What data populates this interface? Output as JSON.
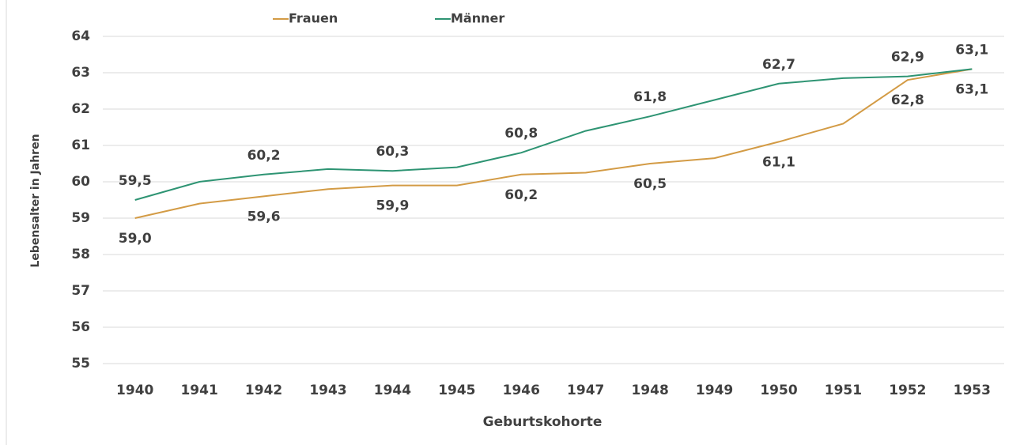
{
  "chart_data": {
    "type": "line",
    "x_label": "Geburtskohorte",
    "y_label": "Lebensalter in Jahren",
    "categories": [
      "1940",
      "1941",
      "1942",
      "1943",
      "1944",
      "1945",
      "1946",
      "1947",
      "1948",
      "1949",
      "1950",
      "1951",
      "1952",
      "1953"
    ],
    "series": [
      {
        "name": "Frauen",
        "color": "#d39b45",
        "label_side": "below",
        "values": [
          59.0,
          59.4,
          59.6,
          59.8,
          59.9,
          59.9,
          60.2,
          60.25,
          60.5,
          60.65,
          61.1,
          61.6,
          62.8,
          63.1
        ],
        "value_labels": [
          "59,0",
          null,
          "59,6",
          null,
          "59,9",
          null,
          "60,2",
          null,
          "60,5",
          null,
          "61,1",
          null,
          "62,8",
          "63,1"
        ]
      },
      {
        "name": "Männer",
        "color": "#2e9473",
        "label_side": "above",
        "values": [
          59.5,
          60.0,
          60.2,
          60.35,
          60.3,
          60.4,
          60.8,
          61.4,
          61.8,
          62.25,
          62.7,
          62.85,
          62.9,
          63.1
        ],
        "value_labels": [
          "59,5",
          null,
          "60,2",
          null,
          "60,3",
          null,
          "60,8",
          null,
          "61,8",
          null,
          "62,7",
          null,
          "62,9",
          "63,1"
        ]
      }
    ],
    "ylim": [
      55,
      64
    ],
    "yticks": [
      55,
      56,
      57,
      58,
      59,
      60,
      61,
      62,
      63,
      64
    ],
    "grid": true,
    "legend": "top"
  }
}
